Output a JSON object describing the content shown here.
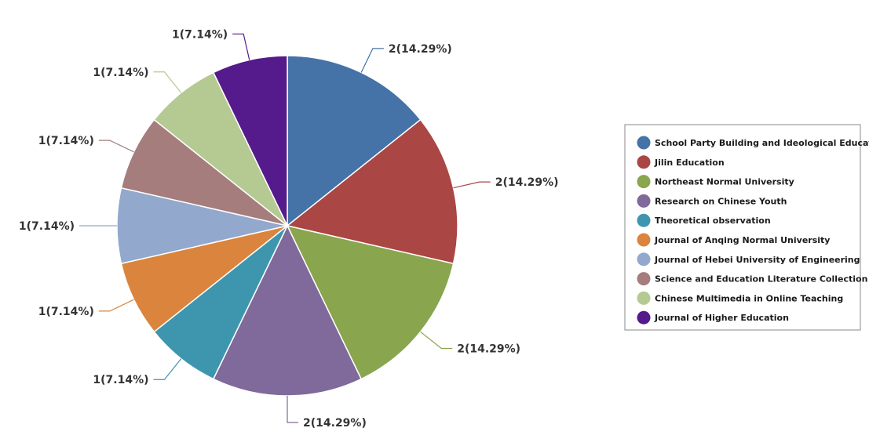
{
  "chart_data": {
    "type": "pie",
    "title": "",
    "legend_position": "right",
    "start_angle_deg": 0,
    "direction": "clockwise",
    "slices": [
      {
        "name": "School Party Building and Ideological Education",
        "value": 2,
        "label": "2(14.29%)",
        "color": "#4572A7"
      },
      {
        "name": "Jilin Education",
        "value": 2,
        "label": "2(14.29%)",
        "color": "#AA4643"
      },
      {
        "name": "Northeast Normal University",
        "value": 2,
        "label": "2(14.29%)",
        "color": "#89A54E"
      },
      {
        "name": "Research on Chinese Youth",
        "value": 2,
        "label": "2(14.29%)",
        "color": "#80699B"
      },
      {
        "name": "Theoretical observation",
        "value": 1,
        "label": "1(7.14%)",
        "color": "#3D96AE"
      },
      {
        "name": "Journal of Anqing Normal University",
        "value": 1,
        "label": "1(7.14%)",
        "color": "#DB843D"
      },
      {
        "name": "Journal of Hebei University of Engineering",
        "value": 1,
        "label": "1(7.14%)",
        "color": "#92A8CD"
      },
      {
        "name": "Science and Education Literature Collection",
        "value": 1,
        "label": "1(7.14%)",
        "color": "#A47D7C"
      },
      {
        "name": "Chinese Multimedia in Online Teaching",
        "value": 1,
        "label": "1(7.14%)",
        "color": "#B5CA92"
      },
      {
        "name": "Journal of Higher Education",
        "value": 1,
        "label": "1(7.14%)",
        "color": "#551A8B"
      }
    ]
  }
}
